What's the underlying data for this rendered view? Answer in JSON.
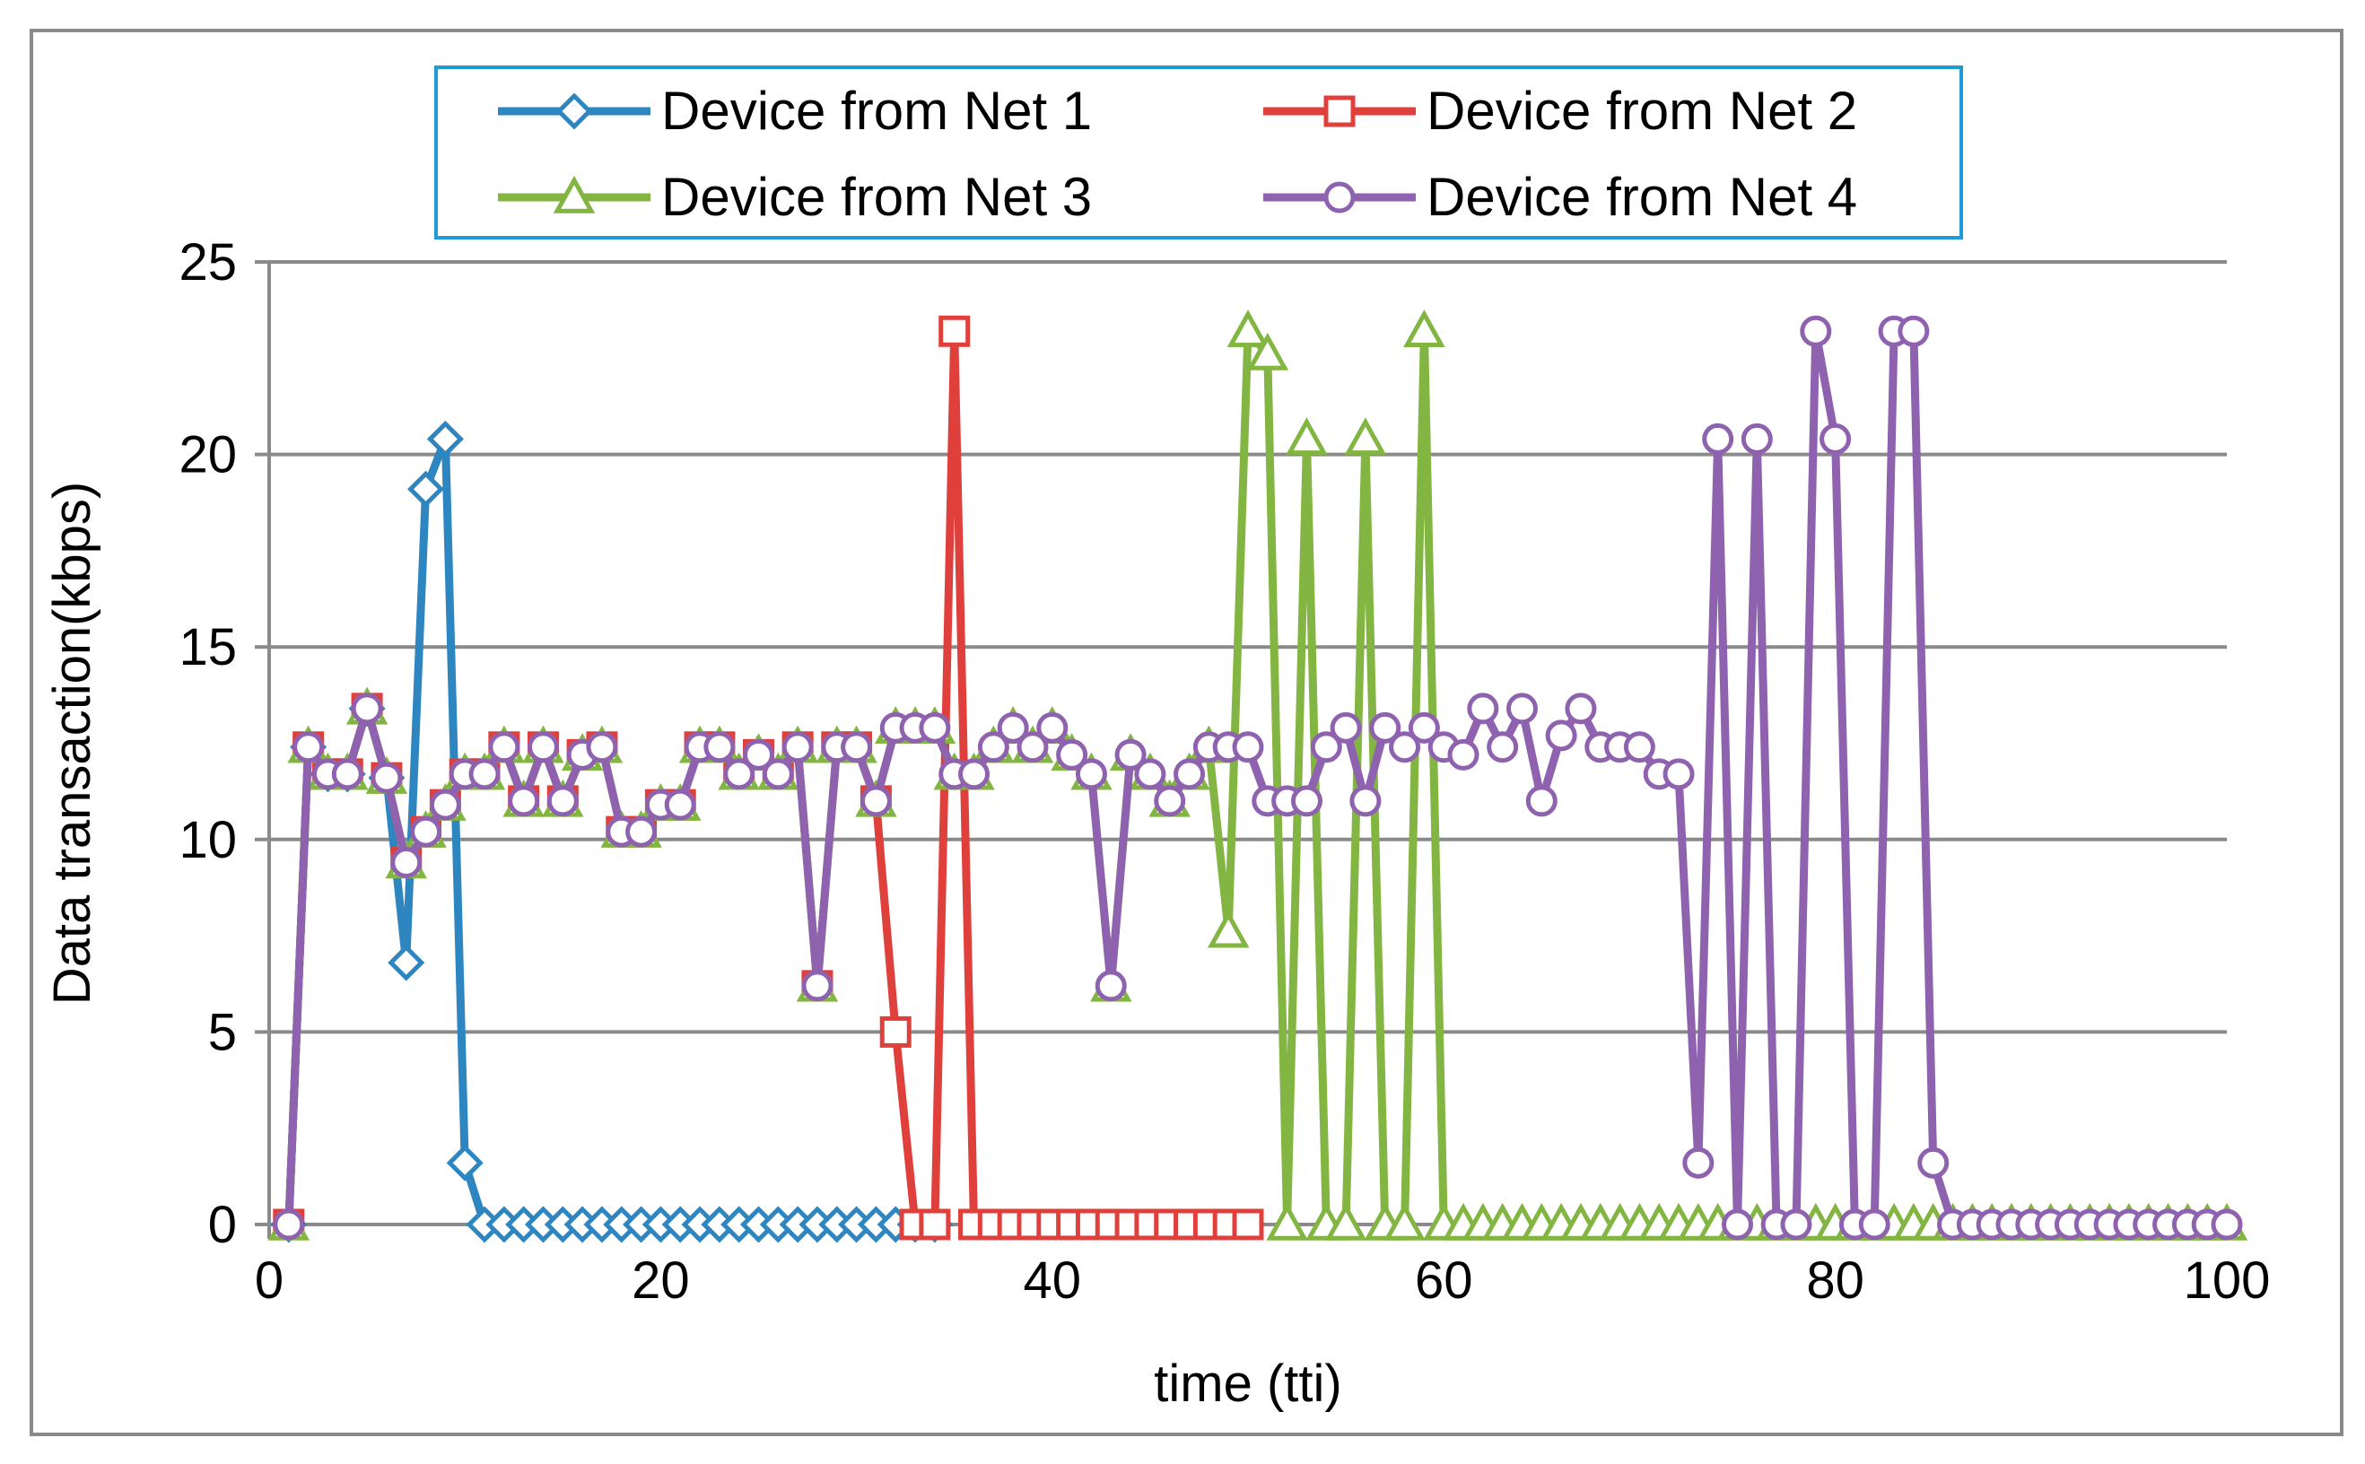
{
  "chart_data": {
    "type": "line",
    "title": "",
    "xlabel": "time (tti)",
    "ylabel": "Data transaction(kbps)",
    "xlim": [
      0,
      100
    ],
    "ylim": [
      0,
      25
    ],
    "x_ticks": [
      0,
      20,
      40,
      60,
      80,
      100
    ],
    "y_ticks": [
      0,
      5,
      10,
      15,
      20,
      25
    ],
    "grid": "horizontal",
    "legend_position": "top",
    "series": [
      {
        "name": "Device from Net 1",
        "color": "#2E86C1",
        "marker": "diamond",
        "x": [
          1,
          2,
          3,
          4,
          5,
          6,
          7,
          8,
          9,
          10,
          11,
          12,
          13,
          14,
          15,
          16,
          17,
          18,
          19,
          20,
          21,
          22,
          23,
          24,
          25,
          26,
          27,
          28,
          29,
          30,
          31,
          32,
          33,
          34
        ],
        "values": [
          0,
          12.4,
          11.7,
          11.7,
          13.4,
          11.6,
          6.8,
          19.1,
          20.4,
          1.6,
          0,
          0,
          0,
          0,
          0,
          0,
          0,
          0,
          0,
          0,
          0,
          0,
          0,
          0,
          0,
          0,
          0,
          0,
          0,
          0,
          0,
          0,
          0,
          0
        ]
      },
      {
        "name": "Device from Net 2",
        "color": "#E0403C",
        "marker": "square",
        "x": [
          1,
          2,
          3,
          4,
          5,
          6,
          7,
          8,
          9,
          10,
          11,
          12,
          13,
          14,
          15,
          16,
          17,
          18,
          19,
          20,
          21,
          22,
          23,
          24,
          25,
          26,
          27,
          28,
          29,
          30,
          31,
          32,
          33,
          34,
          35,
          36,
          37,
          38,
          39,
          40,
          41,
          42,
          43,
          44,
          45,
          46,
          47,
          48,
          49,
          50
        ],
        "values": [
          0,
          12.4,
          11.7,
          11.7,
          13.4,
          11.6,
          9.4,
          10.2,
          10.9,
          11.7,
          11.7,
          12.4,
          11,
          12.4,
          11,
          12.2,
          12.4,
          10.2,
          10.2,
          10.9,
          10.9,
          12.4,
          12.4,
          11.7,
          12.2,
          11.7,
          12.4,
          6.2,
          12.4,
          12.4,
          11,
          5,
          0,
          0,
          23.2,
          0,
          0,
          0,
          0,
          0,
          0,
          0,
          0,
          0,
          0,
          0,
          0,
          0,
          0,
          0
        ]
      },
      {
        "name": "Device from Net 3",
        "color": "#82B541",
        "marker": "triangle",
        "x": [
          1,
          2,
          3,
          4,
          5,
          6,
          7,
          8,
          9,
          10,
          11,
          12,
          13,
          14,
          15,
          16,
          17,
          18,
          19,
          20,
          21,
          22,
          23,
          24,
          25,
          26,
          27,
          28,
          29,
          30,
          31,
          32,
          33,
          34,
          35,
          36,
          37,
          38,
          39,
          40,
          41,
          42,
          43,
          44,
          45,
          46,
          47,
          48,
          49,
          50,
          51,
          52,
          53,
          54,
          55,
          56,
          57,
          58,
          59,
          60,
          61,
          62,
          63,
          64,
          65,
          66,
          67,
          68,
          69,
          70,
          71,
          72,
          73,
          74,
          75,
          76,
          77,
          78,
          79,
          80,
          81,
          82,
          83,
          84,
          85,
          86,
          87,
          88,
          89,
          90,
          91,
          92,
          93,
          94,
          95,
          96,
          97,
          98,
          99,
          100
        ],
        "values": [
          0,
          12.4,
          11.7,
          11.7,
          13.4,
          11.6,
          9.4,
          10.2,
          10.9,
          11.7,
          11.7,
          12.4,
          11,
          12.4,
          11,
          12.2,
          12.4,
          10.2,
          10.2,
          10.9,
          10.9,
          12.4,
          12.4,
          11.7,
          12.2,
          11.7,
          12.4,
          6.2,
          12.4,
          12.4,
          11,
          12.9,
          12.9,
          12.9,
          11.7,
          11.7,
          12.4,
          12.9,
          12.4,
          12.9,
          12.2,
          11.7,
          6.2,
          12.2,
          11.7,
          11,
          11.7,
          12.4,
          7.6,
          23.2,
          22.6,
          0,
          20.4,
          0,
          0,
          20.4,
          0,
          0,
          23.2,
          0,
          0,
          0,
          0,
          0,
          0,
          0,
          0,
          0,
          0,
          0,
          0,
          0,
          0,
          0,
          0,
          0,
          0,
          0,
          0,
          0,
          0,
          0,
          0,
          0,
          0,
          0,
          0,
          0,
          0,
          0,
          0,
          0,
          0,
          0,
          0,
          0,
          0,
          0,
          0,
          0
        ]
      },
      {
        "name": "Device from Net 4",
        "color": "#8E62AE",
        "marker": "circle",
        "x": [
          1,
          2,
          3,
          4,
          5,
          6,
          7,
          8,
          9,
          10,
          11,
          12,
          13,
          14,
          15,
          16,
          17,
          18,
          19,
          20,
          21,
          22,
          23,
          24,
          25,
          26,
          27,
          28,
          29,
          30,
          31,
          32,
          33,
          34,
          35,
          36,
          37,
          38,
          39,
          40,
          41,
          42,
          43,
          44,
          45,
          46,
          47,
          48,
          49,
          50,
          51,
          52,
          53,
          54,
          55,
          56,
          57,
          58,
          59,
          60,
          61,
          62,
          63,
          64,
          65,
          66,
          67,
          68,
          69,
          70,
          71,
          72,
          73,
          74,
          75,
          76,
          77,
          78,
          79,
          80,
          81,
          82,
          83,
          84,
          85,
          86,
          87,
          88,
          89,
          90,
          91,
          92,
          93,
          94,
          95,
          96,
          97,
          98,
          99,
          100
        ],
        "values": [
          0,
          12.4,
          11.7,
          11.7,
          13.4,
          11.6,
          9.4,
          10.2,
          10.9,
          11.7,
          11.7,
          12.4,
          11,
          12.4,
          11,
          12.2,
          12.4,
          10.2,
          10.2,
          10.9,
          10.9,
          12.4,
          12.4,
          11.7,
          12.2,
          11.7,
          12.4,
          6.2,
          12.4,
          12.4,
          11,
          12.9,
          12.9,
          12.9,
          11.7,
          11.7,
          12.4,
          12.9,
          12.4,
          12.9,
          12.2,
          11.7,
          6.2,
          12.2,
          11.7,
          11,
          11.7,
          12.4,
          12.4,
          12.4,
          11,
          11,
          11,
          12.4,
          12.9,
          11,
          12.9,
          12.4,
          12.9,
          12.4,
          12.2,
          13.4,
          12.4,
          13.4,
          11,
          12.7,
          13.4,
          12.4,
          12.4,
          12.4,
          11.7,
          11.7,
          1.6,
          20.4,
          0,
          20.4,
          0,
          0,
          23.2,
          20.4,
          0,
          0,
          23.2,
          23.2,
          1.6,
          0,
          0,
          0,
          0,
          0,
          0,
          0,
          0,
          0,
          0,
          0,
          0,
          0,
          0,
          0
        ]
      }
    ]
  }
}
